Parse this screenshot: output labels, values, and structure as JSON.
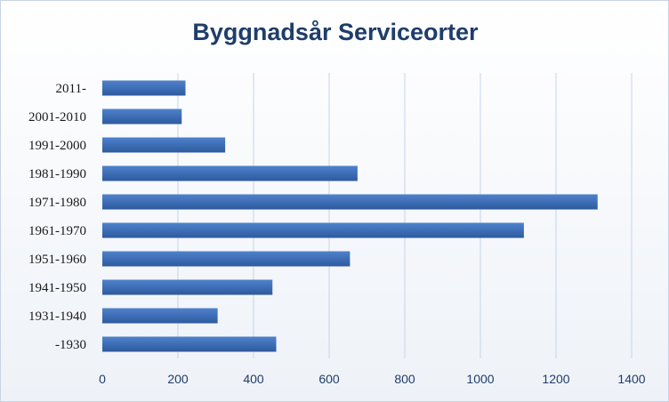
{
  "chart_data": {
    "type": "bar",
    "orientation": "horizontal",
    "title": "Byggnadsår Serviceorter",
    "categories": [
      "2011-",
      "2001-2010",
      "1991-2000",
      "1981-1990",
      "1971-1980",
      "1961-1970",
      "1951-1960",
      "1941-1950",
      "1931-1940",
      "-1930"
    ],
    "values": [
      220,
      210,
      325,
      675,
      1310,
      1115,
      655,
      450,
      305,
      460
    ],
    "xlim": [
      0,
      1400
    ],
    "xticks": [
      0,
      200,
      400,
      600,
      800,
      1000,
      1200,
      1400
    ],
    "grid": true,
    "legend": "none",
    "colors": {
      "bar": "#3a6bb8",
      "grid": "#c8d4e6"
    }
  }
}
